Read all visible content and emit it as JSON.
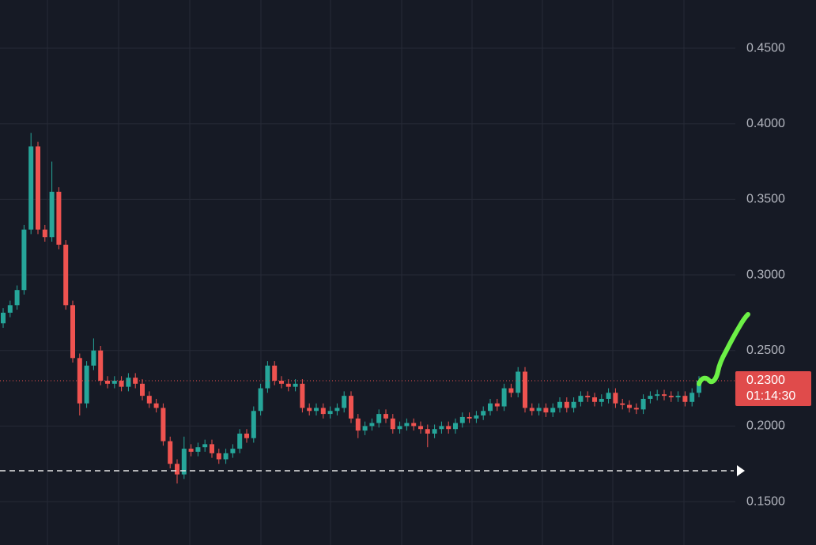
{
  "chart_data": {
    "type": "candlestick",
    "up_color": "#26a69a",
    "down_color": "#ef5350",
    "ylim": [
      0.1213,
      0.4819
    ],
    "yticks": [
      {
        "value": 0.15,
        "label": "0.1500"
      },
      {
        "value": 0.2,
        "label": "0.2000"
      },
      {
        "value": 0.25,
        "label": "0.2500"
      },
      {
        "value": 0.3,
        "label": "0.3000"
      },
      {
        "value": 0.35,
        "label": "0.3500"
      },
      {
        "value": 0.4,
        "label": "0.4000"
      },
      {
        "value": 0.45,
        "label": "0.4500"
      }
    ],
    "grid": true,
    "last_price": {
      "value": 0.23,
      "label": "0.2300"
    },
    "countdown": "01:14:30",
    "reference_line": 0.1704,
    "open": [
      0.268,
      0.275,
      0.28,
      0.29,
      0.33,
      0.385,
      0.33,
      0.325,
      0.355,
      0.32,
      0.28,
      0.245,
      0.215,
      0.24,
      0.25,
      0.23,
      0.228,
      0.23,
      0.226,
      0.232,
      0.228,
      0.22,
      0.215,
      0.212,
      0.19,
      0.175,
      0.168,
      0.185,
      0.183,
      0.186,
      0.188,
      0.182,
      0.178,
      0.182,
      0.185,
      0.195,
      0.192,
      0.21,
      0.225,
      0.24,
      0.23,
      0.228,
      0.226,
      0.228,
      0.212,
      0.21,
      0.212,
      0.208,
      0.21,
      0.212,
      0.22,
      0.205,
      0.197,
      0.2,
      0.202,
      0.208,
      0.205,
      0.198,
      0.2,
      0.202,
      0.2,
      0.198,
      0.195,
      0.198,
      0.2,
      0.198,
      0.202,
      0.206,
      0.205,
      0.207,
      0.21,
      0.215,
      0.213,
      0.225,
      0.222,
      0.236,
      0.212,
      0.21,
      0.212,
      0.209,
      0.212,
      0.216,
      0.212,
      0.216,
      0.22,
      0.219,
      0.216,
      0.218,
      0.222,
      0.215,
      0.214,
      0.212,
      0.211,
      0.218,
      0.22,
      0.221,
      0.22,
      0.219,
      0.22,
      0.216,
      0.222
    ],
    "high": [
      0.278,
      0.283,
      0.293,
      0.333,
      0.394,
      0.388,
      0.333,
      0.375,
      0.358,
      0.323,
      0.283,
      0.248,
      0.243,
      0.258,
      0.253,
      0.233,
      0.233,
      0.233,
      0.235,
      0.235,
      0.231,
      0.223,
      0.218,
      0.215,
      0.193,
      0.178,
      0.193,
      0.188,
      0.189,
      0.191,
      0.191,
      0.185,
      0.185,
      0.188,
      0.198,
      0.198,
      0.213,
      0.228,
      0.243,
      0.243,
      0.233,
      0.231,
      0.231,
      0.231,
      0.215,
      0.215,
      0.215,
      0.213,
      0.215,
      0.223,
      0.223,
      0.208,
      0.203,
      0.205,
      0.211,
      0.211,
      0.208,
      0.203,
      0.205,
      0.205,
      0.203,
      0.201,
      0.201,
      0.203,
      0.203,
      0.205,
      0.209,
      0.209,
      0.21,
      0.213,
      0.218,
      0.218,
      0.228,
      0.228,
      0.239,
      0.239,
      0.215,
      0.215,
      0.215,
      0.215,
      0.219,
      0.219,
      0.219,
      0.223,
      0.223,
      0.222,
      0.221,
      0.225,
      0.225,
      0.218,
      0.217,
      0.215,
      0.221,
      0.223,
      0.224,
      0.224,
      0.223,
      0.223,
      0.223,
      0.225,
      0.233
    ],
    "low": [
      0.265,
      0.272,
      0.277,
      0.287,
      0.327,
      0.327,
      0.322,
      0.322,
      0.317,
      0.277,
      0.242,
      0.207,
      0.212,
      0.237,
      0.227,
      0.225,
      0.225,
      0.223,
      0.223,
      0.225,
      0.217,
      0.212,
      0.209,
      0.187,
      0.172,
      0.162,
      0.165,
      0.18,
      0.18,
      0.183,
      0.179,
      0.175,
      0.175,
      0.179,
      0.182,
      0.189,
      0.189,
      0.207,
      0.222,
      0.227,
      0.225,
      0.223,
      0.223,
      0.209,
      0.207,
      0.207,
      0.205,
      0.205,
      0.207,
      0.209,
      0.202,
      0.192,
      0.194,
      0.197,
      0.199,
      0.202,
      0.195,
      0.195,
      0.197,
      0.197,
      0.195,
      0.186,
      0.192,
      0.195,
      0.195,
      0.195,
      0.199,
      0.202,
      0.202,
      0.204,
      0.207,
      0.21,
      0.21,
      0.219,
      0.219,
      0.209,
      0.207,
      0.207,
      0.206,
      0.206,
      0.209,
      0.209,
      0.209,
      0.213,
      0.216,
      0.213,
      0.213,
      0.215,
      0.212,
      0.211,
      0.209,
      0.208,
      0.208,
      0.215,
      0.217,
      0.217,
      0.216,
      0.216,
      0.213,
      0.213,
      0.219
    ],
    "close": [
      0.275,
      0.28,
      0.29,
      0.33,
      0.385,
      0.33,
      0.325,
      0.355,
      0.32,
      0.28,
      0.245,
      0.215,
      0.24,
      0.25,
      0.23,
      0.228,
      0.23,
      0.226,
      0.232,
      0.228,
      0.22,
      0.215,
      0.212,
      0.19,
      0.175,
      0.168,
      0.185,
      0.183,
      0.186,
      0.188,
      0.182,
      0.178,
      0.182,
      0.185,
      0.195,
      0.192,
      0.21,
      0.225,
      0.24,
      0.23,
      0.228,
      0.226,
      0.228,
      0.212,
      0.21,
      0.212,
      0.208,
      0.21,
      0.212,
      0.22,
      0.205,
      0.197,
      0.2,
      0.202,
      0.208,
      0.205,
      0.198,
      0.2,
      0.202,
      0.2,
      0.198,
      0.195,
      0.198,
      0.2,
      0.198,
      0.202,
      0.206,
      0.205,
      0.207,
      0.21,
      0.215,
      0.213,
      0.225,
      0.222,
      0.236,
      0.212,
      0.21,
      0.212,
      0.209,
      0.212,
      0.216,
      0.212,
      0.216,
      0.22,
      0.219,
      0.216,
      0.218,
      0.222,
      0.215,
      0.214,
      0.212,
      0.211,
      0.218,
      0.22,
      0.221,
      0.22,
      0.219,
      0.22,
      0.216,
      0.222,
      0.23
    ]
  }
}
